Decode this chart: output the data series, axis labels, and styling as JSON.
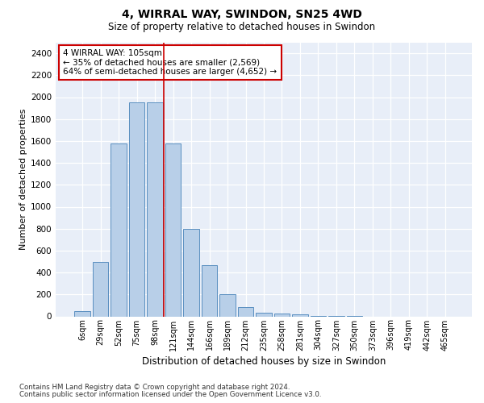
{
  "title": "4, WIRRAL WAY, SWINDON, SN25 4WD",
  "subtitle": "Size of property relative to detached houses in Swindon",
  "xlabel": "Distribution of detached houses by size in Swindon",
  "ylabel": "Number of detached properties",
  "bar_color": "#b8cfe8",
  "bar_edge_color": "#5a8fc0",
  "vline_color": "#cc0000",
  "annotation_line1": "4 WIRRAL WAY: 105sqm",
  "annotation_line2": "← 35% of detached houses are smaller (2,569)",
  "annotation_line3": "64% of semi-detached houses are larger (4,652) →",
  "categories": [
    "6sqm",
    "29sqm",
    "52sqm",
    "75sqm",
    "98sqm",
    "121sqm",
    "144sqm",
    "166sqm",
    "189sqm",
    "212sqm",
    "235sqm",
    "258sqm",
    "281sqm",
    "304sqm",
    "327sqm",
    "350sqm",
    "373sqm",
    "396sqm",
    "419sqm",
    "442sqm",
    "465sqm"
  ],
  "values": [
    50,
    500,
    1580,
    1950,
    1950,
    1580,
    800,
    470,
    200,
    85,
    35,
    25,
    20,
    5,
    5,
    3,
    0,
    0,
    0,
    0,
    0
  ],
  "ylim": [
    0,
    2500
  ],
  "yticks": [
    0,
    200,
    400,
    600,
    800,
    1000,
    1200,
    1400,
    1600,
    1800,
    2000,
    2200,
    2400
  ],
  "vline_index": 4.5,
  "background_color": "#e8eef8",
  "grid_color": "#ffffff",
  "footer_line1": "Contains HM Land Registry data © Crown copyright and database right 2024.",
  "footer_line2": "Contains public sector information licensed under the Open Government Licence v3.0."
}
